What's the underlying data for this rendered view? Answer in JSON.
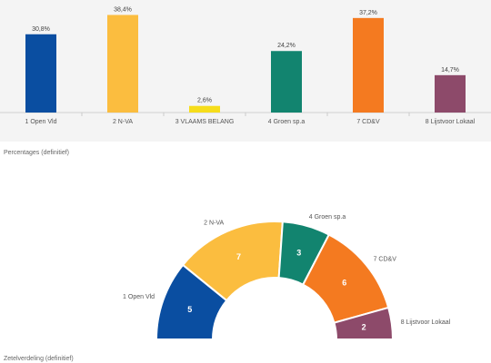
{
  "chart_data": [
    {
      "type": "bar",
      "categories": [
        "1 Open Vld",
        "2 N-VA",
        "3 VLAAMS BELANG",
        "4 Groen sp.a",
        "7 CD&V",
        "8 Lijstvoor Lokaal"
      ],
      "values": [
        30.8,
        38.4,
        2.6,
        24.2,
        37.2,
        14.7
      ],
      "value_labels": [
        "30,8%",
        "38,4%",
        "2,6%",
        "24,2%",
        "37,2%",
        "14,7%"
      ],
      "colors": [
        "#0a4ea1",
        "#fbbd3f",
        "#f6dd1b",
        "#12846f",
        "#f47a20",
        "#8d4a6a"
      ],
      "ylim": [
        0,
        40
      ],
      "note": "Percentages (definitief)"
    },
    {
      "type": "pie",
      "subtype": "semicircle-seats",
      "categories": [
        "1 Open Vld",
        "2 N-VA",
        "4 Groen sp.a",
        "7 CD&V",
        "8 Lijstvoor Lokaal"
      ],
      "values": [
        5,
        7,
        3,
        6,
        2
      ],
      "colors": [
        "#0a4ea1",
        "#fbbd3f",
        "#12846f",
        "#f47a20",
        "#8d4a6a"
      ],
      "note": "Zetelverdeling (definitief)"
    }
  ]
}
